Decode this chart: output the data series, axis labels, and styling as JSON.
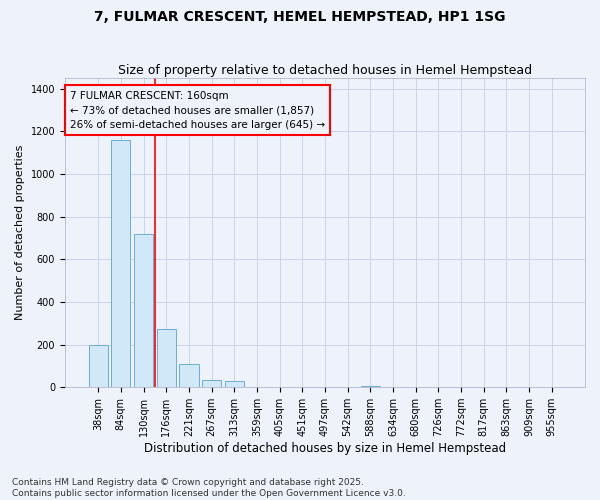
{
  "title": "7, FULMAR CRESCENT, HEMEL HEMPSTEAD, HP1 1SG",
  "subtitle": "Size of property relative to detached houses in Hemel Hempstead",
  "xlabel": "Distribution of detached houses by size in Hemel Hempstead",
  "ylabel": "Number of detached properties",
  "categories": [
    "38sqm",
    "84sqm",
    "130sqm",
    "176sqm",
    "221sqm",
    "267sqm",
    "313sqm",
    "359sqm",
    "405sqm",
    "451sqm",
    "497sqm",
    "542sqm",
    "588sqm",
    "634sqm",
    "680sqm",
    "726sqm",
    "772sqm",
    "817sqm",
    "863sqm",
    "909sqm",
    "955sqm"
  ],
  "bar_values": [
    198,
    1160,
    720,
    275,
    110,
    33,
    28,
    0,
    0,
    0,
    0,
    0,
    8,
    0,
    0,
    0,
    0,
    0,
    0,
    0,
    0
  ],
  "bar_color": "#d0e8f8",
  "bar_edge_color": "#6baed6",
  "annotation_line1": "7 FULMAR CRESCENT: 160sqm",
  "annotation_line2": "← 73% of detached houses are smaller (1,857)",
  "annotation_line3": "26% of semi-detached houses are larger (645) →",
  "vline_x": 2.5,
  "vline_color": "red",
  "ylim": [
    0,
    1450
  ],
  "yticks": [
    0,
    200,
    400,
    600,
    800,
    1000,
    1200,
    1400
  ],
  "grid_color": "#c8d4e8",
  "background_color": "#eef2fa",
  "footer_text": "Contains HM Land Registry data © Crown copyright and database right 2025.\nContains public sector information licensed under the Open Government Licence v3.0.",
  "title_fontsize": 10,
  "subtitle_fontsize": 9,
  "xlabel_fontsize": 8.5,
  "ylabel_fontsize": 8,
  "tick_fontsize": 7,
  "annotation_fontsize": 7.5,
  "footer_fontsize": 6.5
}
